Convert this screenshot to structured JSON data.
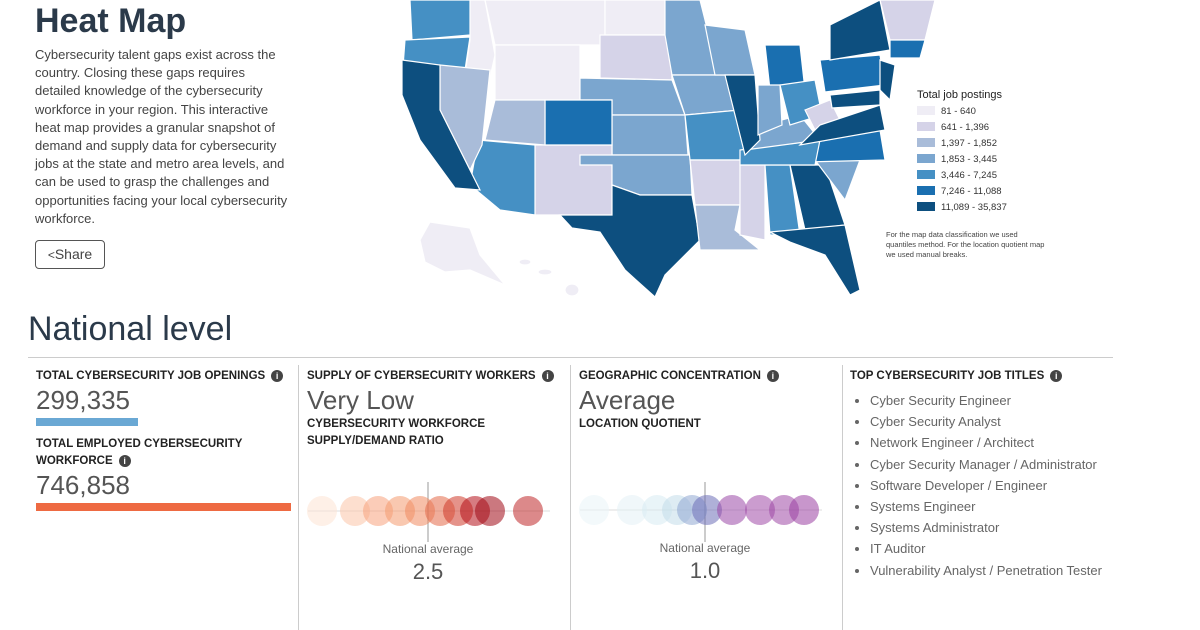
{
  "header": {
    "title": "Heat Map",
    "description": "Cybersecurity talent gaps exist across the country. Closing these gaps requires detailed knowledge of the cybersecurity workforce in your region. This interactive heat map provides a granular snapshot of demand and supply data for cybersecurity jobs at the state and metro area levels, and can be used to grasp the challenges and opportunities facing your local cybersecurity workforce.",
    "share": "Share"
  },
  "map": {
    "legend_title": "Total job postings",
    "legend": [
      {
        "label": "81 - 640",
        "color": "#efedf5"
      },
      {
        "label": "641 - 1,396",
        "color": "#d5d3e8"
      },
      {
        "label": "1,397 - 1,852",
        "color": "#a9bcd9"
      },
      {
        "label": "1,853 - 3,445",
        "color": "#7ba6cf"
      },
      {
        "label": "3,446 - 7,245",
        "color": "#4590c4"
      },
      {
        "label": "7,246 - 11,088",
        "color": "#1a6fb0"
      },
      {
        "label": "11,089 - 35,837",
        "color": "#0d4f7f"
      }
    ],
    "note": "For the map data classification we used quantiles method. For the location quotient map we used manual breaks."
  },
  "national": {
    "title": "National level",
    "openings": {
      "label": "TOTAL CYBERSECURITY JOB OPENINGS",
      "value": "299,335"
    },
    "employed": {
      "label": "TOTAL EMPLOYED CYBERSECURITY WORKFORCE",
      "value": "746,858"
    },
    "supply": {
      "label": "SUPPLY OF CYBERSECURITY WORKERS",
      "value": "Very Low",
      "sublabel": "CYBERSECURITY WORKFORCE SUPPLY/DEMAND RATIO",
      "avg_label": "National average",
      "avg": "2.5"
    },
    "concentration": {
      "label": "GEOGRAPHIC CONCENTRATION",
      "value": "Average",
      "sublabel": "LOCATION QUOTIENT",
      "avg_label": "National average",
      "avg": "1.0"
    },
    "titles": {
      "label": "TOP CYBERSECURITY JOB TITLES",
      "items": [
        "Cyber Security Engineer",
        "Cyber Security Analyst",
        "Network Engineer / Architect",
        "Cyber Security Manager / Administrator",
        "Software Developer / Engineer",
        "Systems Engineer",
        "Systems Administrator",
        "IT Auditor",
        "Vulnerability Analyst / Penetration Tester"
      ]
    }
  }
}
